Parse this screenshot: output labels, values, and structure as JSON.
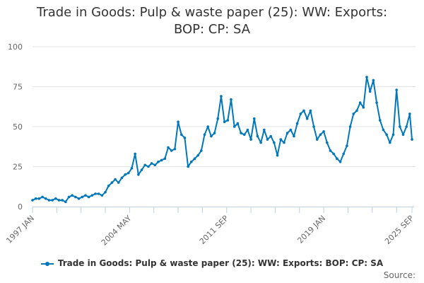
{
  "chart_data": {
    "type": "line",
    "title_line1": "Trade in Goods: Pulp & waste paper (25): WW: Exports:",
    "title_line2": "BOP: CP: SA",
    "xlabel": "",
    "ylabel": "",
    "ylim": [
      0,
      100
    ],
    "y_ticks": [
      "0",
      "25",
      "50",
      "75",
      "100"
    ],
    "x_tick_labels": [
      "1997 JAN",
      "2004 MAY",
      "2011 SEP",
      "2019 JAN",
      "2025 SEP"
    ],
    "grid": true,
    "legend_position": "bottom",
    "series_color": "#0077bb",
    "series": [
      {
        "name": "Trade in Goods: Pulp & waste paper (25): WW: Exports: BOP: CP: SA",
        "x": [
          "1997-01",
          "1997-04",
          "1997-07",
          "1997-10",
          "1998-01",
          "1998-04",
          "1998-07",
          "1998-10",
          "1999-01",
          "1999-04",
          "1999-07",
          "1999-10",
          "2000-01",
          "2000-04",
          "2000-07",
          "2000-10",
          "2001-01",
          "2001-04",
          "2001-07",
          "2001-10",
          "2002-01",
          "2002-04",
          "2002-07",
          "2002-10",
          "2003-01",
          "2003-04",
          "2003-07",
          "2003-10",
          "2004-01",
          "2004-04",
          "2004-07",
          "2004-10",
          "2005-01",
          "2005-04",
          "2005-07",
          "2005-10",
          "2006-01",
          "2006-04",
          "2006-07",
          "2006-10",
          "2007-01",
          "2007-04",
          "2007-07",
          "2007-10",
          "2008-01",
          "2008-04",
          "2008-07",
          "2008-10",
          "2009-01",
          "2009-04",
          "2009-07",
          "2009-10",
          "2010-01",
          "2010-04",
          "2010-07",
          "2010-10",
          "2011-01",
          "2011-04",
          "2011-07",
          "2011-10",
          "2012-01",
          "2012-04",
          "2012-07",
          "2012-10",
          "2013-01",
          "2013-04",
          "2013-07",
          "2013-10",
          "2014-01",
          "2014-04",
          "2014-07",
          "2014-10",
          "2015-01",
          "2015-04",
          "2015-07",
          "2015-10",
          "2016-01",
          "2016-04",
          "2016-07",
          "2016-10",
          "2017-01",
          "2017-04",
          "2017-07",
          "2017-10",
          "2018-01",
          "2018-04",
          "2018-07",
          "2018-10",
          "2019-01",
          "2019-04",
          "2019-07",
          "2019-10",
          "2020-01",
          "2020-04",
          "2020-07",
          "2020-10",
          "2021-01",
          "2021-04",
          "2021-07",
          "2021-10",
          "2022-01",
          "2022-04",
          "2022-07",
          "2022-10",
          "2023-01",
          "2023-04",
          "2023-07",
          "2023-10",
          "2024-01",
          "2024-04",
          "2024-07",
          "2024-10",
          "2025-01",
          "2025-04",
          "2025-07",
          "2025-09"
        ],
        "values": [
          4,
          5,
          5,
          6,
          5,
          4,
          4,
          5,
          4,
          4,
          3,
          6,
          7,
          6,
          5,
          6,
          7,
          6,
          7,
          8,
          8,
          7,
          9,
          13,
          15,
          17,
          15,
          18,
          20,
          21,
          24,
          33,
          20,
          23,
          26,
          25,
          27,
          26,
          28,
          29,
          30,
          37,
          35,
          36,
          53,
          45,
          43,
          25,
          28,
          30,
          32,
          35,
          45,
          50,
          44,
          46,
          55,
          69,
          53,
          54,
          67,
          50,
          52,
          46,
          45,
          48,
          42,
          55,
          44,
          40,
          48,
          42,
          44,
          40,
          32,
          42,
          40,
          46,
          48,
          44,
          52,
          58,
          60,
          55,
          60,
          50,
          42,
          45,
          47,
          40,
          35,
          33,
          30,
          28,
          33,
          38,
          50,
          58,
          60,
          65,
          62,
          81,
          72,
          79,
          65,
          54,
          48,
          45,
          40,
          45,
          73,
          50,
          45,
          50,
          58,
          42
        ]
      }
    ]
  },
  "source_label": "Source:"
}
